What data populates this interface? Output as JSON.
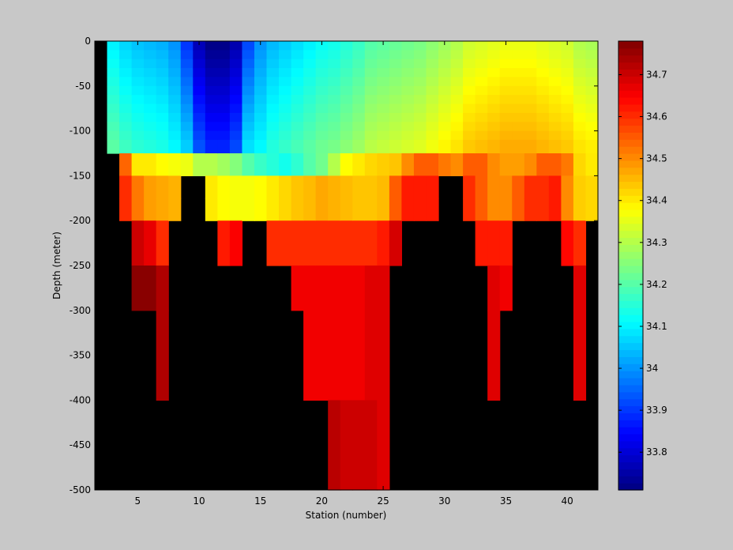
{
  "chart_data": {
    "type": "heatmap",
    "xlabel": "Station (number)",
    "ylabel": "Depth (meter)",
    "xlim": [
      1.5,
      42.5
    ],
    "ylim": [
      -500,
      0
    ],
    "xticks": [
      5,
      10,
      15,
      20,
      25,
      30,
      35,
      40
    ],
    "yticks": [
      0,
      -50,
      -100,
      -150,
      -200,
      -250,
      -300,
      -350,
      -400,
      -450,
      -500
    ],
    "depth_bins_m": [
      0,
      -10,
      -20,
      -30,
      -40,
      -50,
      -60,
      -70,
      -80,
      -90,
      -100,
      -110,
      -125,
      -150,
      -175,
      -200,
      -250,
      -300,
      -400,
      -500
    ],
    "colorbar": {
      "clim": [
        33.71,
        34.78
      ],
      "ticks": [
        33.8,
        33.9,
        34,
        34.1,
        34.2,
        34.3,
        34.4,
        34.5,
        34.6,
        34.7
      ],
      "colormap": "jet"
    },
    "no_data_color": "#000000",
    "surface_salinity_by_station": [
      null,
      34.1,
      34.07,
      34.05,
      34.04,
      34.03,
      34.0,
      33.9,
      33.77,
      33.72,
      33.72,
      33.76,
      33.92,
      34.0,
      34.04,
      34.06,
      34.08,
      34.1,
      34.12,
      34.13,
      34.15,
      34.17,
      34.2,
      34.21,
      34.22,
      34.23,
      34.24,
      34.26,
      34.28,
      34.3,
      34.33,
      34.34,
      34.35,
      34.36,
      34.36,
      34.36,
      34.35,
      34.34,
      34.33,
      34.3,
      34.29
    ],
    "layer_150_salinity_by_station": [
      null,
      null,
      34.54,
      34.4,
      34.4,
      34.38,
      34.37,
      34.36,
      34.3,
      34.3,
      34.28,
      34.25,
      34.2,
      34.17,
      34.15,
      34.13,
      34.16,
      34.2,
      34.23,
      34.3,
      34.38,
      34.4,
      34.42,
      34.43,
      34.44,
      34.5,
      34.55,
      34.55,
      34.52,
      34.5,
      34.55,
      34.55,
      34.5,
      34.48,
      34.48,
      34.5,
      34.55,
      34.55,
      34.52,
      34.42,
      34.4
    ],
    "layer_200_salinity_by_station": [
      null,
      null,
      34.6,
      34.52,
      34.48,
      34.47,
      34.46,
      null,
      null,
      34.4,
      34.38,
      34.37,
      34.37,
      34.38,
      34.4,
      34.42,
      34.44,
      34.45,
      34.47,
      34.46,
      34.45,
      34.44,
      34.44,
      34.45,
      34.55,
      34.62,
      34.62,
      34.62,
      null,
      null,
      34.6,
      34.55,
      34.5,
      34.5,
      34.55,
      34.6,
      34.6,
      34.62,
      34.5,
      34.43,
      34.42
    ],
    "layer_250_salinity_by_station": [
      null,
      null,
      null,
      34.7,
      34.67,
      34.6,
      null,
      null,
      null,
      null,
      34.62,
      34.65,
      null,
      null,
      34.6,
      34.6,
      34.6,
      34.6,
      34.6,
      34.6,
      34.6,
      34.6,
      34.6,
      34.62,
      34.69,
      null,
      null,
      null,
      null,
      null,
      null,
      34.62,
      34.62,
      34.62,
      null,
      null,
      null,
      null,
      34.64,
      34.6,
      null
    ],
    "layer_300_salinity_by_station": [
      null,
      null,
      null,
      34.77,
      34.77,
      34.73,
      null,
      null,
      null,
      null,
      null,
      null,
      null,
      null,
      null,
      null,
      34.66,
      34.66,
      34.66,
      34.66,
      34.66,
      34.66,
      34.68,
      34.68,
      null,
      null,
      null,
      null,
      null,
      null,
      null,
      null,
      34.68,
      34.66,
      null,
      null,
      null,
      null,
      null,
      34.68,
      null
    ],
    "layer_400_salinity_by_station": [
      null,
      null,
      null,
      null,
      null,
      34.73,
      null,
      null,
      null,
      null,
      null,
      null,
      null,
      null,
      null,
      null,
      null,
      34.66,
      34.66,
      34.66,
      34.66,
      34.66,
      34.68,
      34.68,
      null,
      null,
      null,
      null,
      null,
      null,
      null,
      null,
      34.68,
      null,
      null,
      null,
      null,
      null,
      null,
      34.68,
      null
    ],
    "layer_500_salinity_by_station": [
      null,
      null,
      null,
      null,
      null,
      null,
      null,
      null,
      null,
      null,
      null,
      null,
      null,
      null,
      null,
      null,
      null,
      null,
      null,
      34.72,
      34.7,
      34.7,
      34.7,
      34.68,
      null,
      null,
      null,
      null,
      null,
      null,
      null,
      null,
      null,
      null,
      null,
      null,
      null,
      null,
      null,
      null,
      null
    ]
  }
}
